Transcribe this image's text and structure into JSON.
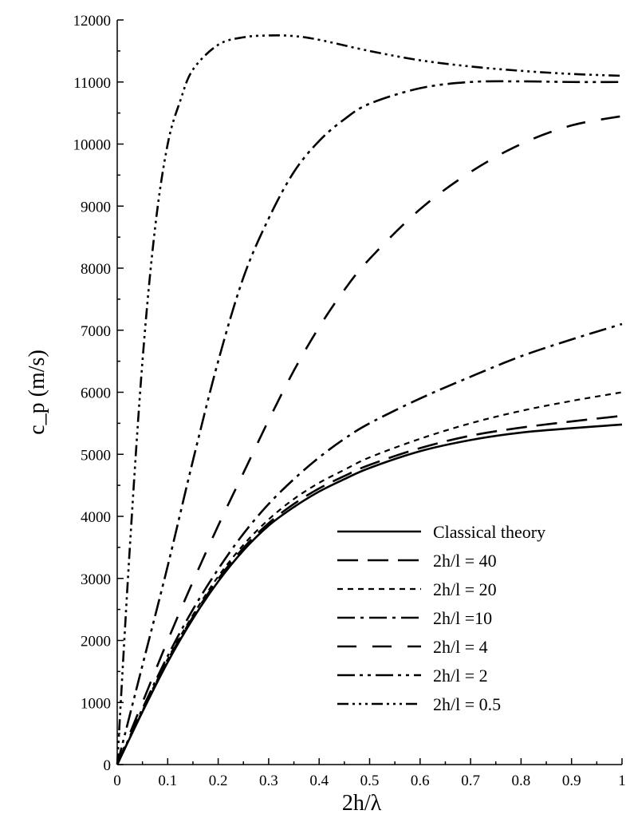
{
  "chart_data": {
    "type": "line",
    "xlabel": "2h/λ",
    "ylabel": "c_p (m/s)",
    "xlim": [
      0,
      1
    ],
    "ylim": [
      0,
      12000
    ],
    "grid": false,
    "legend_position": "bottom-right",
    "x_ticks": [
      0,
      0.1,
      0.2,
      0.3,
      0.4,
      0.5,
      0.6,
      0.7,
      0.8,
      0.9,
      1
    ],
    "x_tick_labels": [
      "0",
      "0.1",
      "0.2",
      "0.3",
      "0.4",
      "0.5",
      "0.6",
      "0.7",
      "0.8",
      "0.9",
      "1"
    ],
    "y_ticks": [
      0,
      1000,
      2000,
      3000,
      4000,
      5000,
      6000,
      7000,
      8000,
      9000,
      10000,
      11000,
      12000
    ],
    "y_tick_labels": [
      "0",
      "1000",
      "2000",
      "3000",
      "4000",
      "5000",
      "6000",
      "7000",
      "8000",
      "9000",
      "10000",
      "11000",
      "12000"
    ],
    "series": [
      {
        "name": "Classical theory",
        "dash": "solid",
        "x": [
          0,
          0.05,
          0.1,
          0.15,
          0.2,
          0.25,
          0.3,
          0.35,
          0.4,
          0.45,
          0.5,
          0.6,
          0.7,
          0.8,
          0.9,
          1.0
        ],
        "y": [
          0,
          850,
          1650,
          2350,
          2950,
          3450,
          3850,
          4150,
          4400,
          4600,
          4780,
          5050,
          5230,
          5350,
          5420,
          5480
        ]
      },
      {
        "name": "2h/l = 40",
        "dash": "long",
        "x": [
          0,
          0.05,
          0.1,
          0.15,
          0.2,
          0.25,
          0.3,
          0.35,
          0.4,
          0.45,
          0.5,
          0.6,
          0.7,
          0.8,
          0.9,
          1.0
        ],
        "y": [
          0,
          860,
          1680,
          2380,
          2990,
          3490,
          3890,
          4200,
          4450,
          4650,
          4830,
          5100,
          5300,
          5430,
          5530,
          5620
        ]
      },
      {
        "name": "2h/l = 20",
        "dash": "short",
        "x": [
          0,
          0.05,
          0.1,
          0.15,
          0.2,
          0.25,
          0.3,
          0.35,
          0.4,
          0.45,
          0.5,
          0.6,
          0.7,
          0.8,
          0.9,
          1.0
        ],
        "y": [
          0,
          870,
          1700,
          2410,
          3030,
          3540,
          3950,
          4280,
          4540,
          4750,
          4950,
          5250,
          5500,
          5700,
          5860,
          6000
        ]
      },
      {
        "name": "2h/l =10",
        "dash": "dashdot",
        "x": [
          0,
          0.05,
          0.1,
          0.15,
          0.2,
          0.25,
          0.3,
          0.35,
          0.4,
          0.45,
          0.5,
          0.6,
          0.7,
          0.8,
          0.9,
          1.0
        ],
        "y": [
          0,
          900,
          1750,
          2500,
          3150,
          3720,
          4200,
          4600,
          4950,
          5250,
          5500,
          5900,
          6250,
          6580,
          6850,
          7100
        ]
      },
      {
        "name": "2h/l = 4",
        "dash": "longgap",
        "x": [
          0,
          0.05,
          0.1,
          0.15,
          0.2,
          0.25,
          0.3,
          0.35,
          0.4,
          0.45,
          0.5,
          0.6,
          0.7,
          0.8,
          0.9,
          1.0
        ],
        "y": [
          0,
          1000,
          2000,
          2950,
          3850,
          4700,
          5550,
          6350,
          7050,
          7650,
          8150,
          8950,
          9550,
          10000,
          10300,
          10450
        ]
      },
      {
        "name": "2h/l = 2",
        "dash": "dashdotdot",
        "x": [
          0,
          0.05,
          0.1,
          0.15,
          0.2,
          0.25,
          0.3,
          0.35,
          0.4,
          0.45,
          0.5,
          0.6,
          0.7,
          0.8,
          0.9,
          1.0
        ],
        "y": [
          0,
          1600,
          3200,
          4900,
          6500,
          7850,
          8800,
          9550,
          10050,
          10400,
          10650,
          10900,
          11000,
          11010,
          11000,
          11000
        ]
      },
      {
        "name": "2h/l = 0.5",
        "dash": "dashdotdotdot",
        "x": [
          0,
          0.025,
          0.05,
          0.075,
          0.1,
          0.125,
          0.15,
          0.2,
          0.25,
          0.3,
          0.35,
          0.4,
          0.5,
          0.6,
          0.7,
          0.8,
          0.9,
          1.0
        ],
        "y": [
          0,
          3500,
          6500,
          8650,
          10000,
          10700,
          11200,
          11600,
          11720,
          11750,
          11740,
          11680,
          11500,
          11350,
          11250,
          11180,
          11130,
          11100
        ]
      }
    ]
  }
}
